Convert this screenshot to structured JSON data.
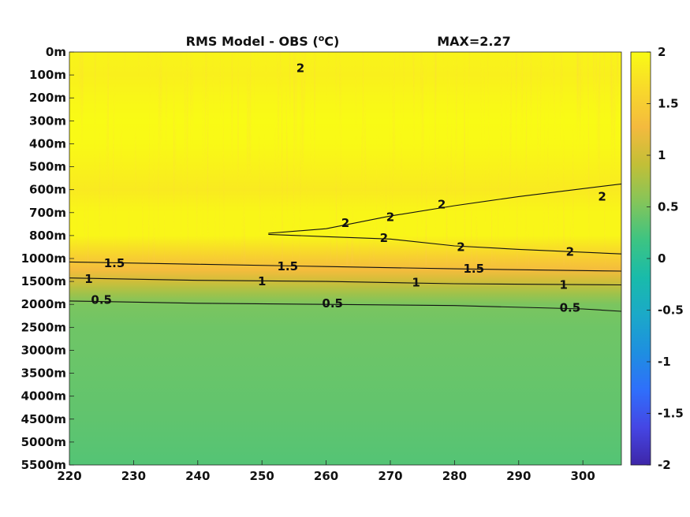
{
  "chart_data": {
    "type": "heatmap",
    "title": "RMS Model - OBS (",
    "title_sup": "o",
    "title_unit": "C)",
    "max_label": "MAX=2.27",
    "x": {
      "ticks": [
        220,
        230,
        240,
        250,
        260,
        270,
        280,
        290,
        300
      ],
      "tick_labels": [
        "220",
        "230",
        "240",
        "250",
        "260",
        "270",
        "280",
        "290",
        "300"
      ],
      "range": [
        220,
        306
      ]
    },
    "y": {
      "levels": [
        "0m",
        "100m",
        "200m",
        "300m",
        "400m",
        "500m",
        "600m",
        "700m",
        "800m",
        "1000m",
        "1500m",
        "2000m",
        "2500m",
        "3000m",
        "3500m",
        "4000m",
        "4500m",
        "5000m",
        "5500m"
      ],
      "reversed": true
    },
    "colorbar": {
      "ticks": [
        2,
        1.5,
        1,
        0.5,
        0,
        -0.5,
        -1,
        -1.5,
        -2
      ],
      "tick_labels": [
        "2",
        "1.5",
        "1",
        "0.5",
        "0",
        "-0.5",
        "-1",
        "-1.5",
        "-2"
      ],
      "range": [
        -2,
        2
      ],
      "colormap": "parula",
      "colors": [
        "#3e26a8",
        "#4546e4",
        "#2f6ffb",
        "#1e8fe0",
        "#1ba9c8",
        "#19bbaa",
        "#3dc482",
        "#84c55a",
        "#c2bf37",
        "#f4ba3e",
        "#f8d92b",
        "#f9fb15"
      ]
    },
    "profile": [
      {
        "depth_index": 0,
        "value": 1.92
      },
      {
        "depth_index": 1,
        "value": 1.88
      },
      {
        "depth_index": 2,
        "value": 1.95
      },
      {
        "depth_index": 3,
        "value": 2.0
      },
      {
        "depth_index": 4,
        "value": 1.98
      },
      {
        "depth_index": 5,
        "value": 1.9
      },
      {
        "depth_index": 6,
        "value": 1.82
      },
      {
        "depth_index": 7,
        "value": 1.95
      },
      {
        "depth_index": 8,
        "value": 1.95
      },
      {
        "depth_index": 9,
        "value": 1.5
      },
      {
        "depth_index": 9.5,
        "value": 1.3
      },
      {
        "depth_index": 10,
        "value": 1.0
      },
      {
        "depth_index": 10.5,
        "value": 0.72
      },
      {
        "depth_index": 11,
        "value": 0.5
      },
      {
        "depth_index": 12,
        "value": 0.44
      },
      {
        "depth_index": 13,
        "value": 0.42
      },
      {
        "depth_index": 14,
        "value": 0.4
      },
      {
        "depth_index": 16,
        "value": 0.36
      },
      {
        "depth_index": 18,
        "value": 0.3
      }
    ],
    "contours": [
      {
        "level": "2",
        "lines": [
          [
            [
              251,
              7.9
            ],
            [
              260,
              7.7
            ],
            [
              270,
              7.15
            ],
            [
              280,
              6.7
            ],
            [
              290,
              6.3
            ],
            [
              306,
              5.75
            ]
          ],
          [
            [
              251,
              7.95
            ],
            [
              260,
              8.05
            ],
            [
              270,
              8.15
            ],
            [
              280,
              8.45
            ],
            [
              290,
              8.6
            ],
            [
              306,
              8.8
            ]
          ]
        ]
      },
      {
        "level": "1.5",
        "lines": [
          [
            [
              220,
              9.15
            ],
            [
              240,
              9.25
            ],
            [
              260,
              9.35
            ],
            [
              280,
              9.45
            ],
            [
              306,
              9.55
            ]
          ]
        ]
      },
      {
        "level": "1",
        "lines": [
          [
            [
              220,
              9.85
            ],
            [
              240,
              9.95
            ],
            [
              260,
              10.0
            ],
            [
              280,
              10.1
            ],
            [
              306,
              10.15
            ]
          ]
        ]
      },
      {
        "level": "0.5",
        "lines": [
          [
            [
              220,
              10.85
            ],
            [
              240,
              10.95
            ],
            [
              260,
              11.0
            ],
            [
              280,
              11.05
            ],
            [
              300,
              11.2
            ],
            [
              306,
              11.3
            ]
          ]
        ]
      }
    ],
    "contour_labels": [
      {
        "text": "2",
        "x": 256,
        "y": 0.7
      },
      {
        "text": "2",
        "x": 263,
        "y": 7.45
      },
      {
        "text": "2",
        "x": 270,
        "y": 7.2
      },
      {
        "text": "2",
        "x": 278,
        "y": 6.65
      },
      {
        "text": "2",
        "x": 303,
        "y": 6.3
      },
      {
        "text": "2",
        "x": 269,
        "y": 8.1
      },
      {
        "text": "2",
        "x": 281,
        "y": 8.5
      },
      {
        "text": "2",
        "x": 298,
        "y": 8.7
      },
      {
        "text": "1.5",
        "x": 227,
        "y": 9.2
      },
      {
        "text": "1.5",
        "x": 254,
        "y": 9.35
      },
      {
        "text": "1.5",
        "x": 283,
        "y": 9.45
      },
      {
        "text": "1",
        "x": 223,
        "y": 9.9
      },
      {
        "text": "1",
        "x": 250,
        "y": 10.0
      },
      {
        "text": "1",
        "x": 274,
        "y": 10.05
      },
      {
        "text": "1",
        "x": 297,
        "y": 10.15
      },
      {
        "text": "0.5",
        "x": 225,
        "y": 10.8
      },
      {
        "text": "0.5",
        "x": 261,
        "y": 10.95
      },
      {
        "text": "0.5",
        "x": 298,
        "y": 11.15
      }
    ]
  }
}
